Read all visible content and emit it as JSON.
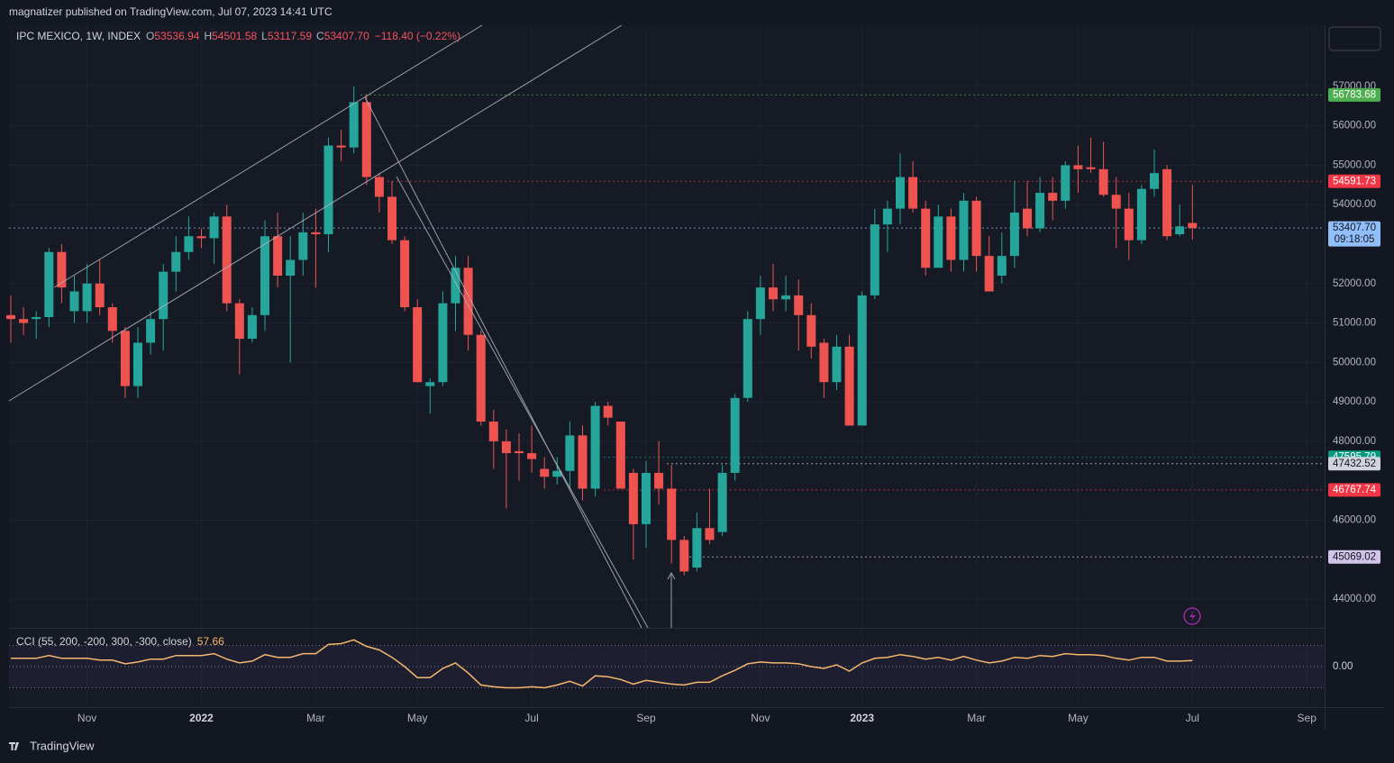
{
  "header": "magnatizer published on TradingView.com, Jul 07, 2023 14:41 UTC",
  "brand": "TradingView",
  "chart_data": [
    {
      "type": "candlestick",
      "legend": {
        "symbol": "IPC MEXICO, 1W, INDEX",
        "keys": [
          "O",
          "H",
          "L",
          "C"
        ],
        "values": [
          53536.94,
          54501.58,
          53117.59,
          53407.7
        ],
        "value_labels": [
          "53536.94",
          "54501.58",
          "53117.59",
          "53407.70"
        ],
        "change": -118.4,
        "change_label": "−118.40 (−0.22%)"
      },
      "up_color": "#26a69a",
      "down_color": "#ef5350",
      "grid": true,
      "categories": [
        null,
        null,
        null,
        null,
        null,
        null,
        "Nov",
        null,
        null,
        null,
        null,
        null,
        null,
        null,
        null,
        "2022",
        null,
        null,
        null,
        null,
        null,
        null,
        null,
        null,
        "Mar",
        null,
        null,
        null,
        null,
        null,
        null,
        null,
        "May",
        null,
        null,
        null,
        null,
        null,
        null,
        null,
        null,
        "Jul",
        null,
        null,
        null,
        null,
        null,
        null,
        null,
        null,
        "Sep",
        null,
        null,
        null,
        null,
        null,
        null,
        null,
        null,
        "Nov",
        null,
        null,
        null,
        null,
        null,
        null,
        null,
        "2023",
        null,
        null,
        null,
        null,
        null,
        null,
        null,
        null,
        "Mar",
        null,
        null,
        null,
        null,
        null,
        null,
        null,
        "May",
        null,
        null,
        null,
        null,
        null,
        null,
        null,
        null,
        "Jul",
        null,
        null,
        null,
        null,
        null,
        null,
        null,
        null,
        "Sep"
      ],
      "ohlc": [
        [
          51200,
          51700,
          50500,
          51100
        ],
        [
          51100,
          51400,
          50700,
          51000
        ],
        [
          51100,
          51300,
          50600,
          51150
        ],
        [
          51150,
          52900,
          50900,
          52800
        ],
        [
          52800,
          53000,
          51500,
          51900
        ],
        [
          51300,
          52200,
          51000,
          51800
        ],
        [
          51300,
          52500,
          51000,
          52000
        ],
        [
          52000,
          52600,
          51200,
          51400
        ],
        [
          51400,
          51500,
          50500,
          50800
        ],
        [
          50800,
          50900,
          49100,
          49400
        ],
        [
          49400,
          50900,
          49100,
          50500
        ],
        [
          50500,
          51300,
          50200,
          51100
        ],
        [
          51100,
          52500,
          50300,
          52300
        ],
        [
          52300,
          53200,
          51800,
          52800
        ],
        [
          52800,
          53700,
          52600,
          53200
        ],
        [
          53200,
          53400,
          52900,
          53150
        ],
        [
          53150,
          53800,
          52500,
          53700
        ],
        [
          53700,
          54000,
          51300,
          51500
        ],
        [
          51500,
          51600,
          49700,
          50600
        ],
        [
          50600,
          51400,
          50500,
          51200
        ],
        [
          51200,
          53600,
          50800,
          53200
        ],
        [
          53200,
          53800,
          51900,
          52200
        ],
        [
          52200,
          53200,
          50000,
          52600
        ],
        [
          52600,
          53800,
          52200,
          53300
        ],
        [
          53300,
          53900,
          51900,
          53250
        ],
        [
          53250,
          55700,
          52800,
          55500
        ],
        [
          55500,
          55900,
          55100,
          55450
        ],
        [
          55450,
          57000,
          55300,
          56600
        ],
        [
          56600,
          56800,
          54500,
          54700
        ],
        [
          54700,
          54800,
          53800,
          54200
        ],
        [
          54200,
          54600,
          53000,
          53100
        ],
        [
          53100,
          53200,
          51300,
          51400
        ],
        [
          51400,
          51600,
          49500,
          49500
        ],
        [
          49400,
          49600,
          48700,
          49500
        ],
        [
          49500,
          51800,
          49400,
          51500
        ],
        [
          51500,
          52700,
          50800,
          52400
        ],
        [
          52400,
          52700,
          50300,
          50700
        ],
        [
          50700,
          50800,
          48400,
          48500
        ],
        [
          48500,
          48800,
          47300,
          48000
        ],
        [
          48000,
          48300,
          46300,
          47700
        ],
        [
          47750,
          48200,
          47000,
          47700
        ],
        [
          47700,
          48400,
          47200,
          47550
        ],
        [
          47300,
          47600,
          46800,
          47100
        ],
        [
          47100,
          47600,
          46900,
          47250
        ],
        [
          47250,
          48500,
          46800,
          48150
        ],
        [
          48150,
          48400,
          46500,
          46800
        ],
        [
          46800,
          49000,
          46600,
          48900
        ],
        [
          48900,
          49000,
          48400,
          48600
        ],
        [
          48500,
          48500,
          46800,
          46800
        ],
        [
          47200,
          47300,
          45000,
          45900
        ],
        [
          45900,
          47500,
          45300,
          47200
        ],
        [
          47200,
          48000,
          46400,
          46800
        ],
        [
          46800,
          47400,
          44900,
          45500
        ],
        [
          45500,
          45600,
          44600,
          44700
        ],
        [
          44800,
          46200,
          44700,
          45800
        ],
        [
          45800,
          46800,
          45400,
          45500
        ],
        [
          45700,
          47400,
          45600,
          47200
        ],
        [
          47200,
          49200,
          47000,
          49100
        ],
        [
          49100,
          51300,
          49000,
          51100
        ],
        [
          51100,
          52200,
          50700,
          51900
        ],
        [
          51900,
          52500,
          51300,
          51600
        ],
        [
          51600,
          52200,
          51300,
          51700
        ],
        [
          51700,
          52100,
          50300,
          51200
        ],
        [
          51200,
          51500,
          50100,
          50400
        ],
        [
          50500,
          50600,
          49100,
          49500
        ],
        [
          49500,
          50700,
          49300,
          50400
        ],
        [
          50400,
          50700,
          48400,
          48400
        ],
        [
          48400,
          51800,
          48400,
          51700
        ],
        [
          51700,
          53900,
          51600,
          53500
        ],
        [
          53500,
          54100,
          52800,
          53900
        ],
        [
          53900,
          55300,
          53500,
          54700
        ],
        [
          54700,
          55100,
          53800,
          53900
        ],
        [
          53900,
          54100,
          52200,
          52400
        ],
        [
          52400,
          54000,
          52400,
          53700
        ],
        [
          53700,
          53900,
          52300,
          52600
        ],
        [
          52600,
          54300,
          52300,
          54100
        ],
        [
          54100,
          54200,
          52300,
          52700
        ],
        [
          52700,
          53200,
          51800,
          51800
        ],
        [
          52200,
          53300,
          52000,
          52700
        ],
        [
          52700,
          54600,
          52400,
          53800
        ],
        [
          53900,
          54600,
          53200,
          53400
        ],
        [
          53400,
          54700,
          53300,
          54300
        ],
        [
          54300,
          54700,
          53600,
          54100
        ],
        [
          54100,
          55100,
          53900,
          55000
        ],
        [
          55000,
          55500,
          54300,
          54900
        ],
        [
          54950,
          55700,
          54800,
          54900
        ],
        [
          54900,
          55600,
          54200,
          54250
        ],
        [
          54250,
          54700,
          52900,
          53900
        ],
        [
          53900,
          54300,
          52600,
          53100
        ],
        [
          53100,
          54500,
          53000,
          54400
        ],
        [
          54400,
          55400,
          54200,
          54800
        ],
        [
          54900,
          55000,
          53100,
          53200
        ],
        [
          53250,
          54000,
          53200,
          53450
        ],
        [
          53536.94,
          54501.58,
          53117.59,
          53407.7
        ],
        null,
        null,
        null,
        null,
        null,
        null,
        null,
        null,
        null
      ],
      "ylim": [
        43270,
        58550
      ],
      "yticks": [
        {
          "value": 44000,
          "label": "44000.00"
        },
        {
          "value": 46000,
          "label": "46000.00"
        },
        {
          "value": 48000,
          "label": "48000.00"
        },
        {
          "value": 49000,
          "label": "49000.00"
        },
        {
          "value": 50000,
          "label": "50000.00"
        },
        {
          "value": 51000,
          "label": "51000.00"
        },
        {
          "value": 52000,
          "label": "52000.00"
        },
        {
          "value": 54000,
          "label": "54000.00"
        },
        {
          "value": 55000,
          "label": "55000.00"
        },
        {
          "value": 56000,
          "label": "56000.00"
        },
        {
          "value": 57000,
          "label": "57000.00"
        }
      ],
      "price_lines": [
        {
          "value": 56783.68,
          "label": "56783.68",
          "color": "#4caf50"
        },
        {
          "value": 54591.73,
          "label": "54591.73",
          "color": "#f23645"
        },
        {
          "value": 53407.7,
          "label": "53407.70",
          "color": "#90bff9",
          "countdown": "09:18:05"
        },
        {
          "value": 47595.79,
          "label": "47595.79",
          "color": "#089981"
        },
        {
          "value": 47432.52,
          "label": "47432.52",
          "color": "#d1d4dc"
        },
        {
          "value": 46767.74,
          "label": "46767.74",
          "color": "#f23645"
        },
        {
          "value": 45069.02,
          "label": "45069.02",
          "color": "#d1c4e9"
        }
      ]
    },
    {
      "type": "line",
      "title": "CCI (55, 200, -200, 300, -300, close)",
      "color": "#f5b76d",
      "levels": [
        200,
        -200
      ],
      "values": [
        78,
        78,
        78,
        104,
        78,
        78,
        78,
        61,
        61,
        26,
        43,
        70,
        70,
        104,
        104,
        104,
        122,
        70,
        35,
        52,
        113,
        87,
        87,
        122,
        122,
        209,
        217,
        252,
        191,
        157,
        87,
        0,
        -104,
        -104,
        -17,
        35,
        -61,
        -174,
        -191,
        -200,
        -200,
        -191,
        -200,
        -174,
        -139,
        -183,
        -87,
        -96,
        -122,
        -165,
        -130,
        -148,
        -165,
        -174,
        -148,
        -148,
        -87,
        -35,
        26,
        43,
        35,
        35,
        26,
        0,
        -17,
        17,
        -43,
        35,
        78,
        87,
        113,
        96,
        70,
        87,
        61,
        96,
        61,
        35,
        52,
        87,
        78,
        104,
        96,
        122,
        113,
        113,
        104,
        78,
        61,
        87,
        87,
        52,
        52,
        57.66,
        null,
        null,
        null,
        null,
        null,
        null,
        null,
        null,
        null
      ],
      "ylim": [
        -383,
        357
      ],
      "yticks": [
        {
          "value": 0,
          "label": "0.00"
        }
      ]
    }
  ]
}
